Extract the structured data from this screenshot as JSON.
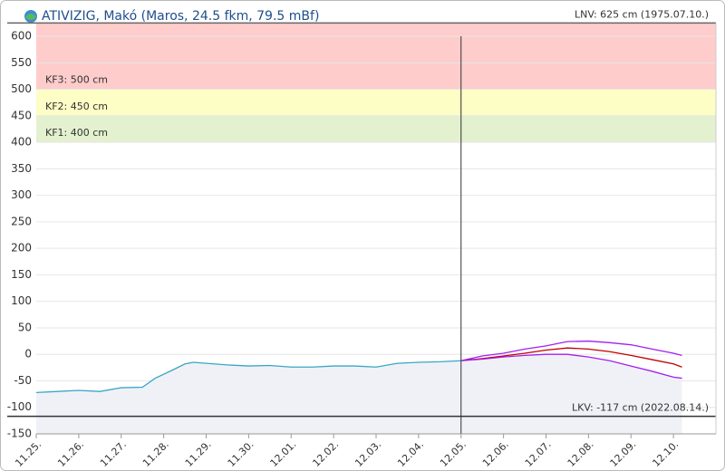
{
  "chart_data": {
    "type": "line",
    "title": "ATIVIZIG, Makó (Maros, 24.5 fkm, 79.5 mBf)",
    "xlim": [
      0,
      16
    ],
    "xticks": [
      {
        "value": 0,
        "label": "11.25."
      },
      {
        "value": 1,
        "label": "11.26."
      },
      {
        "value": 2,
        "label": "11.27."
      },
      {
        "value": 3,
        "label": "11.28."
      },
      {
        "value": 4,
        "label": "11.29."
      },
      {
        "value": 5,
        "label": "11.30."
      },
      {
        "value": 6,
        "label": "12.01."
      },
      {
        "value": 7,
        "label": "12.02."
      },
      {
        "value": 8,
        "label": "12.03."
      },
      {
        "value": 9,
        "label": "12.04."
      },
      {
        "value": 10,
        "label": "12.05."
      },
      {
        "value": 11,
        "label": "12.06."
      },
      {
        "value": 12,
        "label": "12.07."
      },
      {
        "value": 13,
        "label": "12.08."
      },
      {
        "value": 14,
        "label": "12.09."
      },
      {
        "value": 15,
        "label": "12.10."
      }
    ],
    "ylim": [
      -150,
      625
    ],
    "yticks": [
      -150,
      -100,
      -50,
      0,
      50,
      100,
      150,
      200,
      250,
      300,
      350,
      400,
      450,
      500,
      550,
      600
    ],
    "grid": true,
    "bands": [
      {
        "label": "KF3: 500 cm",
        "value": 500,
        "color": "#ffcccc"
      },
      {
        "label": "KF2: 450 cm",
        "value": 450,
        "color": "#fdfdc6"
      },
      {
        "label": "KF1: 400 cm",
        "value": 400,
        "color": "#e3f1cf"
      }
    ],
    "ref_lines": [
      {
        "label": "LNV: 625 cm (1975.07.10.)",
        "value": 625,
        "color": "#666666"
      },
      {
        "label": "LKV: -117 cm (2022.08.14.)",
        "value": -117,
        "color": "#333333"
      }
    ],
    "now_x": 10,
    "series": [
      {
        "color": "#3aa6c4",
        "x": [
          0,
          0.5,
          1,
          1.5,
          2,
          2.5,
          2.8,
          3.2,
          3.5,
          3.7,
          4,
          4.5,
          5,
          5.5,
          6,
          6.5,
          7,
          7.5,
          8,
          8.5,
          9,
          9.5,
          10
        ],
        "values": [
          -72,
          -70,
          -68,
          -70,
          -63,
          -62,
          -45,
          -30,
          -18,
          -15,
          -17,
          -20,
          -22,
          -21,
          -24,
          -24,
          -22,
          -22,
          -24,
          -17,
          -15,
          -14,
          -12
        ]
      },
      {
        "color": "#a020f0",
        "x": [
          10,
          10.5,
          11,
          11.5,
          12,
          12.5,
          13,
          13.5,
          14,
          14.5,
          15,
          15.2
        ],
        "values": [
          -12,
          -3,
          2,
          10,
          16,
          24,
          25,
          22,
          18,
          10,
          2,
          -2
        ]
      },
      {
        "color": "#c00000",
        "x": [
          10,
          10.5,
          11,
          11.5,
          12,
          12.5,
          13,
          13.5,
          14,
          14.5,
          15,
          15.2
        ],
        "values": [
          -12,
          -8,
          -3,
          2,
          8,
          12,
          10,
          5,
          -2,
          -10,
          -18,
          -24
        ]
      },
      {
        "color": "#a020f0",
        "x": [
          10,
          10.5,
          11,
          11.5,
          12,
          12.5,
          13,
          13.5,
          14,
          14.5,
          15,
          15.2
        ],
        "values": [
          -12,
          -9,
          -5,
          -2,
          0,
          0,
          -5,
          -12,
          -22,
          -32,
          -43,
          -45
        ]
      }
    ]
  }
}
